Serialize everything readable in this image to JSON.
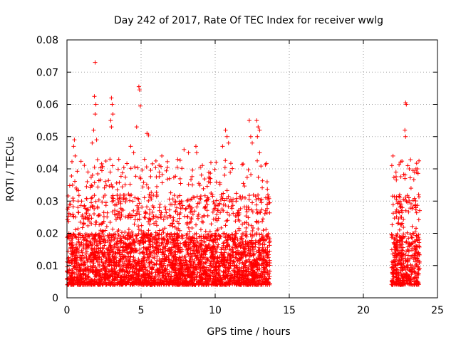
{
  "chart_data": {
    "type": "scatter",
    "title": "Day 242 of 2017, Rate Of TEC Index for receiver wwlg",
    "xlabel": "GPS time / hours",
    "ylabel": "ROTI / TECUs",
    "xlim": [
      0,
      25
    ],
    "ylim": [
      0,
      0.08
    ],
    "x_ticks": [
      0,
      5,
      10,
      15,
      20,
      25
    ],
    "x_tick_labels": [
      "0",
      "5",
      "10",
      "15",
      "20",
      "25"
    ],
    "y_ticks": [
      0,
      0.01,
      0.02,
      0.03,
      0.04,
      0.05,
      0.06,
      0.07,
      0.08
    ],
    "y_tick_labels": [
      "0",
      "0.01",
      "0.02",
      "0.03",
      "0.04",
      "0.05",
      "0.06",
      "0.07",
      "0.08"
    ],
    "grid": true,
    "marker": "plus",
    "color": "#ff0000",
    "series": [
      {
        "name": "ROTI",
        "segments": [
          {
            "x_range": [
              0.0,
              13.7
            ],
            "typical_range": [
              0.004,
              0.02
            ]
          },
          {
            "x_range": [
              21.9,
              23.8
            ],
            "typical_range": [
              0.004,
              0.02
            ]
          }
        ],
        "points": [
          {
            "x": 1.9,
            "y": 0.073
          },
          {
            "x": 1.85,
            "y": 0.0625
          },
          {
            "x": 1.95,
            "y": 0.06
          },
          {
            "x": 1.9,
            "y": 0.057
          },
          {
            "x": 1.8,
            "y": 0.052
          },
          {
            "x": 2.0,
            "y": 0.049
          },
          {
            "x": 1.7,
            "y": 0.048
          },
          {
            "x": 3.0,
            "y": 0.062
          },
          {
            "x": 3.05,
            "y": 0.06
          },
          {
            "x": 3.1,
            "y": 0.057
          },
          {
            "x": 2.95,
            "y": 0.055
          },
          {
            "x": 3.0,
            "y": 0.053
          },
          {
            "x": 4.85,
            "y": 0.0655
          },
          {
            "x": 4.9,
            "y": 0.0645
          },
          {
            "x": 4.95,
            "y": 0.0595
          },
          {
            "x": 4.7,
            "y": 0.053
          },
          {
            "x": 5.4,
            "y": 0.051
          },
          {
            "x": 5.5,
            "y": 0.0505
          },
          {
            "x": 0.5,
            "y": 0.049
          },
          {
            "x": 0.45,
            "y": 0.047
          },
          {
            "x": 0.55,
            "y": 0.044
          },
          {
            "x": 2.9,
            "y": 0.043
          },
          {
            "x": 4.3,
            "y": 0.047
          },
          {
            "x": 4.5,
            "y": 0.045
          },
          {
            "x": 6.4,
            "y": 0.044
          },
          {
            "x": 7.9,
            "y": 0.046
          },
          {
            "x": 8.2,
            "y": 0.045
          },
          {
            "x": 8.7,
            "y": 0.047
          },
          {
            "x": 8.75,
            "y": 0.045
          },
          {
            "x": 10.5,
            "y": 0.047
          },
          {
            "x": 10.7,
            "y": 0.052
          },
          {
            "x": 10.8,
            "y": 0.05
          },
          {
            "x": 10.9,
            "y": 0.048
          },
          {
            "x": 12.3,
            "y": 0.055
          },
          {
            "x": 12.4,
            "y": 0.05
          },
          {
            "x": 12.5,
            "y": 0.048
          },
          {
            "x": 12.8,
            "y": 0.055
          },
          {
            "x": 12.9,
            "y": 0.053
          },
          {
            "x": 13.0,
            "y": 0.052
          },
          {
            "x": 12.85,
            "y": 0.05
          },
          {
            "x": 13.0,
            "y": 0.045
          },
          {
            "x": 22.0,
            "y": 0.044
          },
          {
            "x": 22.2,
            "y": 0.039
          },
          {
            "x": 22.85,
            "y": 0.0605
          },
          {
            "x": 22.9,
            "y": 0.06
          },
          {
            "x": 22.8,
            "y": 0.052
          },
          {
            "x": 22.85,
            "y": 0.05
          },
          {
            "x": 23.0,
            "y": 0.041
          },
          {
            "x": 23.1,
            "y": 0.04
          },
          {
            "x": 23.55,
            "y": 0.04
          },
          {
            "x": 23.6,
            "y": 0.039
          }
        ]
      }
    ]
  }
}
